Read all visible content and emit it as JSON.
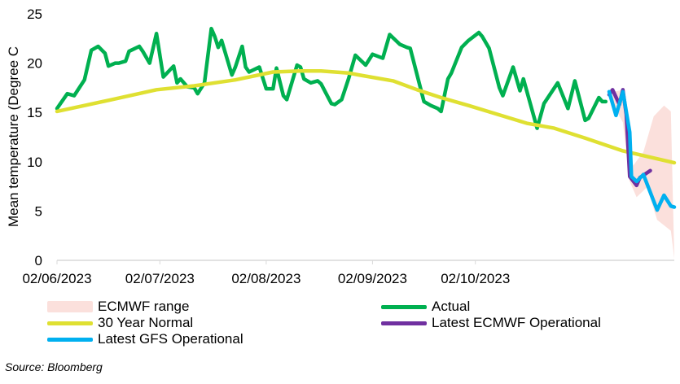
{
  "chart_data": {
    "type": "line",
    "title": "",
    "ylabel": "Mean temperature (Degree C",
    "xlabel": "",
    "ylim": [
      0,
      25
    ],
    "yticks": [
      0,
      5,
      10,
      15,
      20,
      25
    ],
    "x_unit": "days since 02/06/2023",
    "xlim": [
      0,
      180
    ],
    "xticks": [
      {
        "day": 0,
        "label": "02/06/2023"
      },
      {
        "day": 30,
        "label": "02/07/2023"
      },
      {
        "day": 61,
        "label": "02/08/2023"
      },
      {
        "day": 92,
        "label": "02/09/2023"
      },
      {
        "day": 122,
        "label": "02/10/2023"
      }
    ],
    "legend_placement": "bottom",
    "series": [
      {
        "name": "ECMWF range",
        "type": "band",
        "color": "#fbe0dc",
        "upper": [
          [
            161,
            17.0
          ],
          [
            165,
            17.3
          ],
          [
            168,
            9.6
          ],
          [
            171,
            11.0
          ],
          [
            174,
            14.6
          ],
          [
            177,
            15.7
          ],
          [
            179,
            15.1
          ],
          [
            180,
            0.2
          ]
        ],
        "lower": [
          [
            161,
            16.5
          ],
          [
            165,
            14.0
          ],
          [
            167,
            8.0
          ],
          [
            169,
            6.4
          ],
          [
            172,
            7.4
          ],
          [
            175,
            4.1
          ],
          [
            179,
            3.0
          ],
          [
            180,
            0.2
          ]
        ]
      },
      {
        "name": "Actual",
        "color": "#00b050",
        "points": [
          [
            0,
            15.4
          ],
          [
            3,
            16.9
          ],
          [
            5,
            16.7
          ],
          [
            8,
            18.3
          ],
          [
            10,
            21.3
          ],
          [
            12,
            21.7
          ],
          [
            14,
            21.0
          ],
          [
            15,
            19.7
          ],
          [
            17,
            20.0
          ],
          [
            18,
            20.0
          ],
          [
            20,
            20.2
          ],
          [
            21,
            21.2
          ],
          [
            24,
            21.7
          ],
          [
            25,
            21.2
          ],
          [
            27,
            20.0
          ],
          [
            29,
            23.0
          ],
          [
            31,
            18.6
          ],
          [
            34,
            19.7
          ],
          [
            35,
            18.0
          ],
          [
            36,
            18.4
          ],
          [
            38,
            17.6
          ],
          [
            40,
            17.5
          ],
          [
            41,
            16.9
          ],
          [
            43,
            18.0
          ],
          [
            45,
            23.5
          ],
          [
            46,
            22.7
          ],
          [
            47,
            21.6
          ],
          [
            48,
            22.3
          ],
          [
            51,
            18.8
          ],
          [
            52,
            19.6
          ],
          [
            54,
            21.7
          ],
          [
            55,
            19.6
          ],
          [
            56,
            19.1
          ],
          [
            59,
            19.6
          ],
          [
            61,
            17.4
          ],
          [
            63,
            17.4
          ],
          [
            64,
            19.5
          ],
          [
            66,
            16.7
          ],
          [
            67,
            16.3
          ],
          [
            70,
            19.8
          ],
          [
            71,
            19.6
          ],
          [
            72,
            18.4
          ],
          [
            74,
            18.0
          ],
          [
            76,
            18.2
          ],
          [
            77,
            17.9
          ],
          [
            80,
            15.9
          ],
          [
            81,
            15.8
          ],
          [
            83,
            16.3
          ],
          [
            85,
            18.4
          ],
          [
            87,
            20.8
          ],
          [
            90,
            19.8
          ],
          [
            92,
            20.9
          ],
          [
            95,
            20.5
          ],
          [
            97,
            22.9
          ],
          [
            100,
            21.9
          ],
          [
            102,
            21.6
          ],
          [
            103,
            21.5
          ],
          [
            107,
            16.1
          ],
          [
            109,
            15.7
          ],
          [
            111,
            15.4
          ],
          [
            112,
            15.1
          ],
          [
            114,
            18.4
          ],
          [
            115,
            19.0
          ],
          [
            118,
            21.6
          ],
          [
            120,
            22.3
          ],
          [
            123,
            23.1
          ],
          [
            124,
            22.7
          ],
          [
            126,
            21.5
          ],
          [
            129,
            17.5
          ],
          [
            130,
            16.7
          ],
          [
            133,
            19.6
          ],
          [
            135,
            17.2
          ],
          [
            136,
            18.4
          ],
          [
            140,
            13.4
          ],
          [
            142,
            15.9
          ],
          [
            146,
            18.0
          ],
          [
            149,
            15.4
          ],
          [
            151,
            18.2
          ],
          [
            154,
            14.2
          ],
          [
            155,
            14.4
          ],
          [
            158,
            16.5
          ],
          [
            159,
            16.1
          ],
          [
            160,
            16.1
          ]
        ]
      },
      {
        "name": "30 Year Normal",
        "color": "#dfe032",
        "points": [
          [
            0,
            15.1
          ],
          [
            16,
            16.3
          ],
          [
            29,
            17.3
          ],
          [
            40,
            17.7
          ],
          [
            52,
            18.3
          ],
          [
            63,
            19.1
          ],
          [
            71,
            19.2
          ],
          [
            77,
            19.2
          ],
          [
            85,
            19.0
          ],
          [
            88,
            18.8
          ],
          [
            98,
            18.2
          ],
          [
            105,
            17.3
          ],
          [
            112,
            16.5
          ],
          [
            120,
            15.7
          ],
          [
            137,
            13.9
          ],
          [
            145,
            13.4
          ],
          [
            154,
            12.4
          ],
          [
            165,
            11.1
          ],
          [
            180,
            9.9
          ]
        ]
      },
      {
        "name": "Latest ECMWF Operational",
        "color": "#7030a0",
        "points": [
          [
            161,
            16.8
          ],
          [
            162,
            17.3
          ],
          [
            164,
            15.8
          ],
          [
            165,
            17.3
          ],
          [
            166,
            14.8
          ],
          [
            167,
            8.5
          ],
          [
            169,
            7.6
          ],
          [
            170,
            8.4
          ],
          [
            173,
            9.1
          ]
        ]
      },
      {
        "name": "Latest GFS Operational",
        "color": "#00b0f0",
        "points": [
          [
            161,
            17.1
          ],
          [
            163,
            14.7
          ],
          [
            165,
            17.1
          ],
          [
            165.5,
            16.1
          ],
          [
            167,
            13.0
          ],
          [
            167.5,
            8.5
          ],
          [
            169,
            8.0
          ],
          [
            171,
            8.7
          ],
          [
            175,
            5.1
          ],
          [
            177,
            6.6
          ],
          [
            179,
            5.5
          ],
          [
            180,
            5.4
          ]
        ]
      }
    ]
  },
  "source": "Source: Bloomberg"
}
